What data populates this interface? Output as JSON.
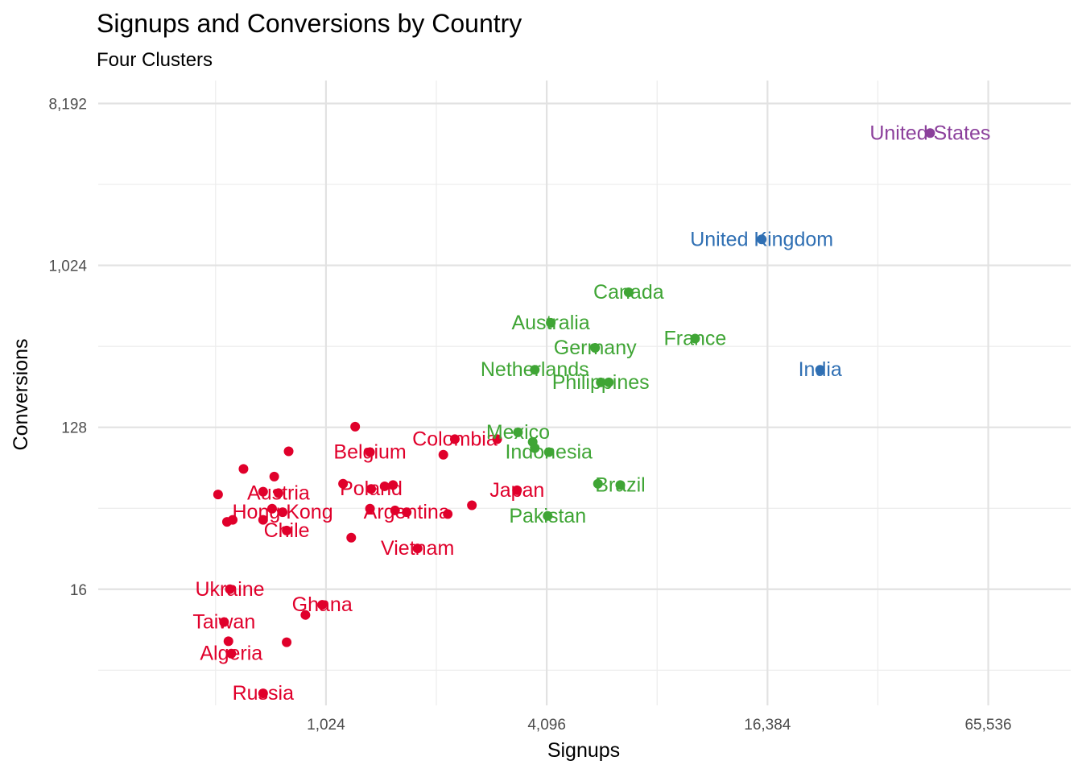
{
  "chart_data": {
    "type": "scatter",
    "title": "Signups and Conversions by Country",
    "subtitle": "Four Clusters",
    "xlabel": "Signups",
    "ylabel": "Conversions",
    "x_scale": "log2",
    "y_scale": "log2",
    "xlim": [
      245,
      110000
    ],
    "ylim": [
      3.6,
      11000
    ],
    "x_ticks": [
      1024,
      4096,
      16384,
      65536
    ],
    "x_tick_labels": [
      "1,024",
      "4,096",
      "16,384",
      "65,536"
    ],
    "y_ticks": [
      16,
      128,
      1024,
      8192
    ],
    "y_tick_labels": [
      "16",
      "128",
      "1,024",
      "8,192"
    ],
    "grid": true,
    "legend": "none",
    "colors": {
      "cluster_1": "#e0002b",
      "cluster_2": "#3fa535",
      "cluster_3": "#2f6fb3",
      "cluster_4": "#8b3f9b"
    },
    "series": [
      {
        "cluster": "cluster_1",
        "color": "#e0002b",
        "points": [
          {
            "x": 520,
            "y": 54,
            "label": ""
          },
          {
            "x": 570,
            "y": 39,
            "label": ""
          },
          {
            "x": 550,
            "y": 38,
            "label": ""
          },
          {
            "x": 610,
            "y": 75,
            "label": ""
          },
          {
            "x": 690,
            "y": 56,
            "label": ""
          },
          {
            "x": 730,
            "y": 45,
            "label": ""
          },
          {
            "x": 690,
            "y": 39,
            "label": ""
          },
          {
            "x": 760,
            "y": 55,
            "label": "Austria"
          },
          {
            "x": 740,
            "y": 68,
            "label": ""
          },
          {
            "x": 780,
            "y": 43,
            "label": "Hong Kong"
          },
          {
            "x": 810,
            "y": 94,
            "label": ""
          },
          {
            "x": 800,
            "y": 34,
            "label": "Chile"
          },
          {
            "x": 1230,
            "y": 129,
            "label": ""
          },
          {
            "x": 1350,
            "y": 93,
            "label": "Belgium"
          },
          {
            "x": 1140,
            "y": 62,
            "label": ""
          },
          {
            "x": 1360,
            "y": 58,
            "label": "Poland"
          },
          {
            "x": 1480,
            "y": 60,
            "label": ""
          },
          {
            "x": 1560,
            "y": 61,
            "label": ""
          },
          {
            "x": 1350,
            "y": 45,
            "label": ""
          },
          {
            "x": 1200,
            "y": 31,
            "label": ""
          },
          {
            "x": 1580,
            "y": 44,
            "label": ""
          },
          {
            "x": 1700,
            "y": 43,
            "label": "Argentina"
          },
          {
            "x": 1820,
            "y": 27,
            "label": "Vietnam"
          },
          {
            "x": 2140,
            "y": 90,
            "label": ""
          },
          {
            "x": 2200,
            "y": 42,
            "label": ""
          },
          {
            "x": 2300,
            "y": 110,
            "label": "Colombia"
          },
          {
            "x": 2560,
            "y": 47,
            "label": ""
          },
          {
            "x": 3000,
            "y": 110,
            "label": ""
          },
          {
            "x": 3400,
            "y": 57,
            "label": "Japan"
          },
          {
            "x": 560,
            "y": 16,
            "label": "Ukraine"
          },
          {
            "x": 1000,
            "y": 13.1,
            "label": "Ghana"
          },
          {
            "x": 900,
            "y": 11.5,
            "label": ""
          },
          {
            "x": 540,
            "y": 10.5,
            "label": "Taiwan"
          },
          {
            "x": 555,
            "y": 8.2,
            "label": ""
          },
          {
            "x": 800,
            "y": 8.1,
            "label": ""
          },
          {
            "x": 565,
            "y": 7.0,
            "label": "Algeria"
          },
          {
            "x": 690,
            "y": 4.2,
            "label": "Russia"
          }
        ]
      },
      {
        "cluster": "cluster_2",
        "color": "#3fa535",
        "points": [
          {
            "x": 6850,
            "y": 725,
            "label": "Canada"
          },
          {
            "x": 4200,
            "y": 490,
            "label": "Australia"
          },
          {
            "x": 10400,
            "y": 400,
            "label": "France"
          },
          {
            "x": 5550,
            "y": 355,
            "label": "Germany"
          },
          {
            "x": 3800,
            "y": 268,
            "label": "Netherlands"
          },
          {
            "x": 5750,
            "y": 228,
            "label": "Philippines"
          },
          {
            "x": 6050,
            "y": 228,
            "label": ""
          },
          {
            "x": 3420,
            "y": 120,
            "label": "Mexico"
          },
          {
            "x": 3750,
            "y": 106,
            "label": ""
          },
          {
            "x": 3800,
            "y": 98,
            "label": ""
          },
          {
            "x": 4150,
            "y": 93,
            "label": "Indonesia"
          },
          {
            "x": 5650,
            "y": 62,
            "label": ""
          },
          {
            "x": 6500,
            "y": 61,
            "label": "Brazil"
          },
          {
            "x": 4120,
            "y": 41,
            "label": "Pakistan"
          }
        ]
      },
      {
        "cluster": "cluster_3",
        "color": "#2f6fb3",
        "points": [
          {
            "x": 15800,
            "y": 1430,
            "label": "United Kingdom"
          },
          {
            "x": 22800,
            "y": 268,
            "label": "India"
          }
        ]
      },
      {
        "cluster": "cluster_4",
        "color": "#8b3f9b",
        "points": [
          {
            "x": 45500,
            "y": 5600,
            "label": "United States"
          }
        ]
      }
    ]
  }
}
